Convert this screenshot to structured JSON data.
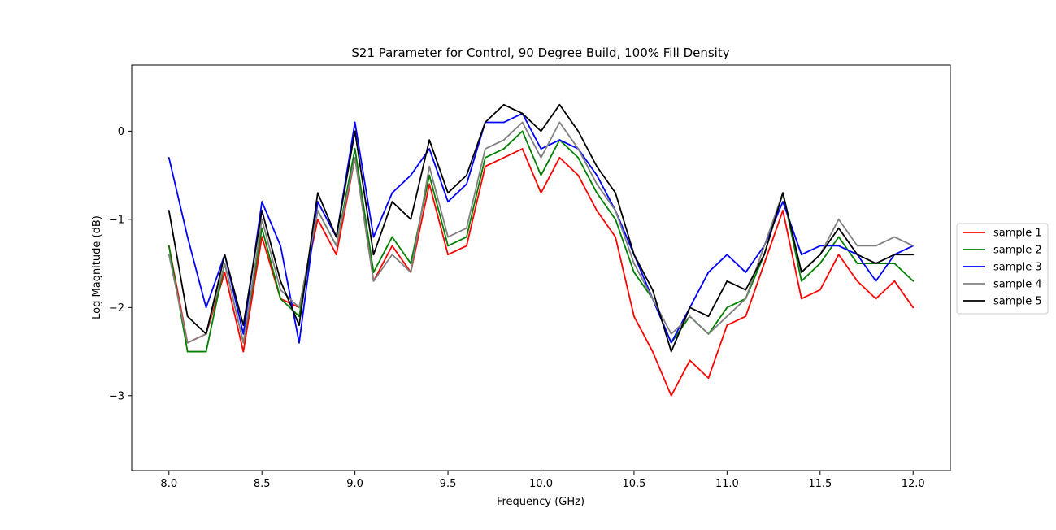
{
  "chart_data": {
    "type": "line",
    "title": "S21 Parameter for Control, 90 Degree Build, 100% Fill Density",
    "xlabel": "Frequency (GHz)",
    "ylabel": "Log Magnitude (dB)",
    "xlim": [
      7.8,
      12.2
    ],
    "ylim": [
      -3.85,
      0.75
    ],
    "xticks": [
      {
        "value": 8.0,
        "label": "8.0"
      },
      {
        "value": 8.5,
        "label": "8.5"
      },
      {
        "value": 9.0,
        "label": "9.0"
      },
      {
        "value": 9.5,
        "label": "9.5"
      },
      {
        "value": 10.0,
        "label": "10.0"
      },
      {
        "value": 10.5,
        "label": "10.5"
      },
      {
        "value": 11.0,
        "label": "11.0"
      },
      {
        "value": 11.5,
        "label": "11.5"
      },
      {
        "value": 12.0,
        "label": "12.0"
      }
    ],
    "yticks": [
      {
        "value": 0,
        "label": "0"
      },
      {
        "value": -1,
        "label": "−1"
      },
      {
        "value": -2,
        "label": "−2"
      },
      {
        "value": -3,
        "label": "−3"
      }
    ],
    "grid": false,
    "legend_position": "outside-right",
    "x": [
      8.0,
      8.1,
      8.2,
      8.3,
      8.4,
      8.5,
      8.6,
      8.7,
      8.8,
      8.9,
      9.0,
      9.1,
      9.2,
      9.3,
      9.4,
      9.5,
      9.6,
      9.7,
      9.8,
      9.9,
      10.0,
      10.1,
      10.2,
      10.3,
      10.4,
      10.5,
      10.6,
      10.7,
      10.8,
      10.9,
      11.0,
      11.1,
      11.2,
      11.3,
      11.4,
      11.5,
      11.6,
      11.7,
      11.8,
      11.9,
      12.0
    ],
    "series": [
      {
        "name": "sample 1",
        "color": "#ff0000",
        "values": [
          -1.3,
          -2.4,
          -2.3,
          -1.6,
          -2.5,
          -1.2,
          -1.9,
          -2.0,
          -1.0,
          -1.4,
          -0.3,
          -1.7,
          -1.3,
          -1.6,
          -0.6,
          -1.4,
          -1.3,
          -0.4,
          -0.3,
          -0.2,
          -0.7,
          -0.3,
          -0.5,
          -0.9,
          -1.2,
          -2.1,
          -2.5,
          -3.0,
          -2.6,
          -2.8,
          -2.2,
          -2.1,
          -1.5,
          -0.9,
          -1.9,
          -1.8,
          -1.4,
          -1.7,
          -1.9,
          -1.7,
          -2.0
        ]
      },
      {
        "name": "sample 2",
        "color": "#008000",
        "values": [
          -1.3,
          -2.5,
          -2.5,
          -1.5,
          -2.4,
          -1.1,
          -1.9,
          -2.1,
          -0.9,
          -1.3,
          -0.2,
          -1.6,
          -1.2,
          -1.5,
          -0.5,
          -1.3,
          -1.2,
          -0.3,
          -0.2,
          0.0,
          -0.5,
          -0.1,
          -0.3,
          -0.7,
          -1.0,
          -1.6,
          -1.9,
          -2.4,
          -2.1,
          -2.3,
          -2.0,
          -1.9,
          -1.4,
          -0.7,
          -1.7,
          -1.5,
          -1.2,
          -1.5,
          -1.5,
          -1.5,
          -1.7
        ]
      },
      {
        "name": "sample 3",
        "color": "#0000ff",
        "values": [
          -0.3,
          -1.2,
          -2.0,
          -1.4,
          -2.3,
          -0.8,
          -1.3,
          -2.4,
          -0.8,
          -1.2,
          0.1,
          -1.2,
          -0.7,
          -0.5,
          -0.2,
          -0.8,
          -0.6,
          0.1,
          0.1,
          0.2,
          -0.2,
          -0.1,
          -0.2,
          -0.5,
          -0.9,
          -1.4,
          -1.9,
          -2.4,
          -2.0,
          -1.6,
          -1.4,
          -1.6,
          -1.3,
          -0.8,
          -1.4,
          -1.3,
          -1.3,
          -1.4,
          -1.7,
          -1.4,
          -1.3
        ]
      },
      {
        "name": "sample 4",
        "color": "#808080",
        "values": [
          -1.4,
          -2.4,
          -2.3,
          -1.5,
          -2.4,
          -1.0,
          -1.8,
          -2.0,
          -0.9,
          -1.3,
          -0.3,
          -1.7,
          -1.4,
          -1.6,
          -0.4,
          -1.2,
          -1.1,
          -0.2,
          -0.1,
          0.1,
          -0.3,
          0.1,
          -0.2,
          -0.6,
          -0.9,
          -1.5,
          -1.9,
          -2.3,
          -2.1,
          -2.3,
          -2.1,
          -1.9,
          -1.3,
          -0.7,
          -1.6,
          -1.4,
          -1.0,
          -1.3,
          -1.3,
          -1.2,
          -1.3
        ]
      },
      {
        "name": "sample 5",
        "color": "#000000",
        "values": [
          -0.9,
          -2.1,
          -2.3,
          -1.4,
          -2.2,
          -0.9,
          -1.7,
          -2.2,
          -0.7,
          -1.2,
          0.0,
          -1.4,
          -0.8,
          -1.0,
          -0.1,
          -0.7,
          -0.5,
          0.1,
          0.3,
          0.2,
          0.0,
          0.3,
          0.0,
          -0.4,
          -0.7,
          -1.4,
          -1.8,
          -2.5,
          -2.0,
          -2.1,
          -1.7,
          -1.8,
          -1.4,
          -0.7,
          -1.6,
          -1.4,
          -1.1,
          -1.4,
          -1.5,
          -1.4,
          -1.4
        ]
      }
    ]
  }
}
